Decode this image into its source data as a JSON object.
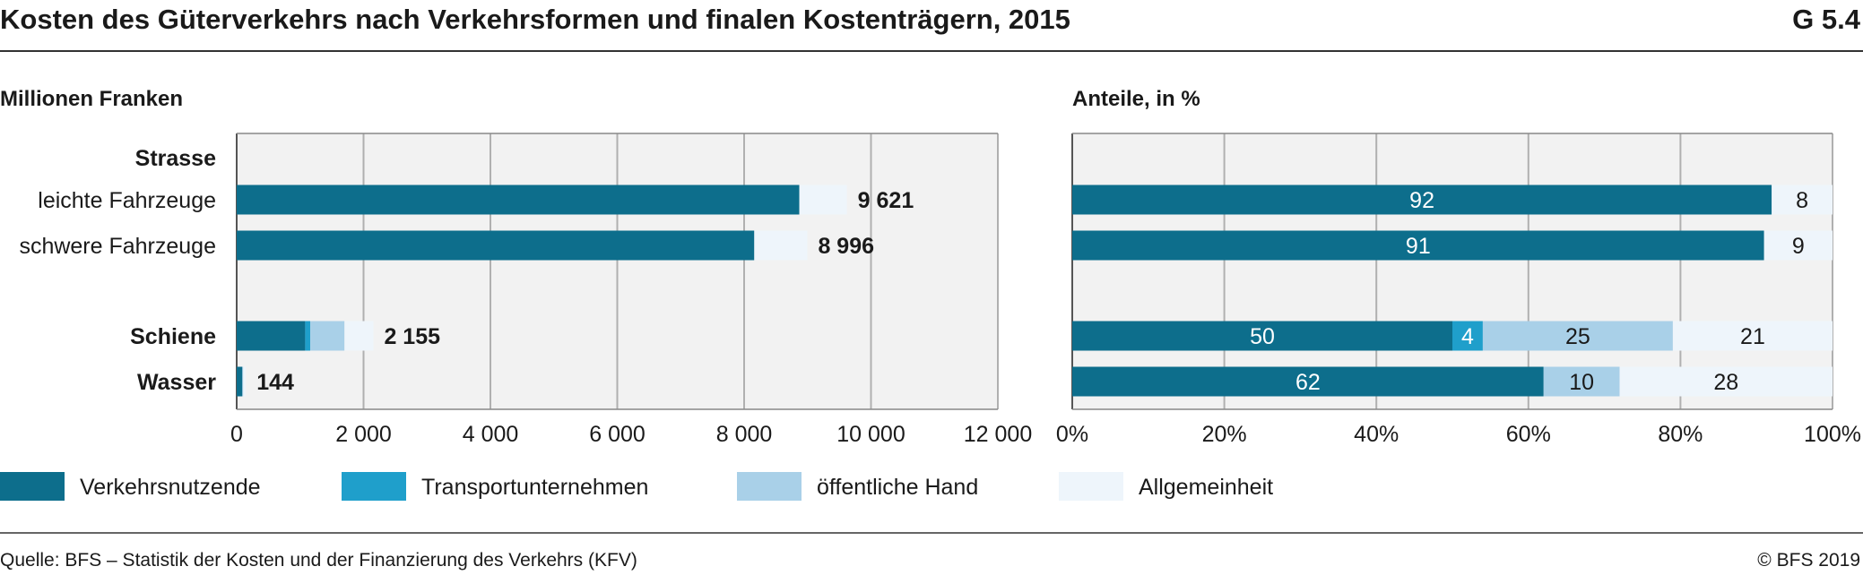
{
  "header": {
    "title": "Kosten des Güterverkehrs nach Verkehrsformen und finalen Kostenträgern, 2015",
    "figure_id": "G 5.4"
  },
  "footer": {
    "source": "Quelle: BFS – Statistik der Kosten und der Finanzierung des Verkehrs (KFV)",
    "copyright": "© BFS 2019"
  },
  "colors": {
    "Verkehrsnutzende": "#0d6e8c",
    "Transportunternehmen": "#1f9fcb",
    "öffentliche Hand": "#a9d0e8",
    "Allgemeinheit": "#eef5fb",
    "plot_background": "#f2f2f2",
    "grid": "#b0b0b0"
  },
  "legend": {
    "items": [
      "Verkehrsnutzende",
      "Transportunternehmen",
      "öffentliche Hand",
      "Allgemeinheit"
    ]
  },
  "chart_data": [
    {
      "type": "bar",
      "orientation": "horizontal",
      "stacked": true,
      "subtitle": "Millionen Franken",
      "categories": [
        "Strasse",
        "leichte Fahrzeuge",
        "schwere Fahrzeuge",
        "Schiene",
        "Wasser"
      ],
      "category_group_headers": [
        "Strasse"
      ],
      "bold_categories": [
        "Strasse",
        "Schiene",
        "Wasser"
      ],
      "series": [
        {
          "name": "Verkehrsnutzende",
          "values": [
            null,
            8870,
            8160,
            1080,
            89
          ]
        },
        {
          "name": "Transportunternehmen",
          "values": [
            null,
            0,
            0,
            80,
            0
          ]
        },
        {
          "name": "öffentliche Hand",
          "values": [
            null,
            0,
            0,
            540,
            14
          ]
        },
        {
          "name": "Allgemeinheit",
          "values": [
            null,
            751,
            836,
            455,
            41
          ]
        }
      ],
      "totals": [
        null,
        9621,
        8996,
        2155,
        144
      ],
      "total_labels": [
        "",
        "9 621",
        "8 996",
        "2 155",
        "144"
      ],
      "xlim": [
        0,
        12000
      ],
      "xticks": [
        0,
        2000,
        4000,
        6000,
        8000,
        10000,
        12000
      ],
      "xtick_labels": [
        "0",
        "2 000",
        "4 000",
        "6 000",
        "8 000",
        "10 000",
        "12 000"
      ],
      "grid": true
    },
    {
      "type": "bar",
      "orientation": "horizontal",
      "stacked": true,
      "subtitle": "Anteile, in %",
      "categories": [
        "Strasse",
        "leichte Fahrzeuge",
        "schwere Fahrzeuge",
        "Schiene",
        "Wasser"
      ],
      "series": [
        {
          "name": "Verkehrsnutzende",
          "values": [
            null,
            92,
            91,
            50,
            62
          ]
        },
        {
          "name": "Transportunternehmen",
          "values": [
            null,
            0,
            0,
            4,
            0
          ]
        },
        {
          "name": "öffentliche Hand",
          "values": [
            null,
            0,
            0,
            25,
            10
          ]
        },
        {
          "name": "Allgemeinheit",
          "values": [
            null,
            8,
            9,
            21,
            28
          ]
        }
      ],
      "xlim": [
        0,
        100
      ],
      "xticks": [
        0,
        20,
        40,
        60,
        80,
        100
      ],
      "xtick_labels": [
        "0%",
        "20%",
        "40%",
        "60%",
        "80%",
        "100%"
      ],
      "grid": true
    }
  ]
}
